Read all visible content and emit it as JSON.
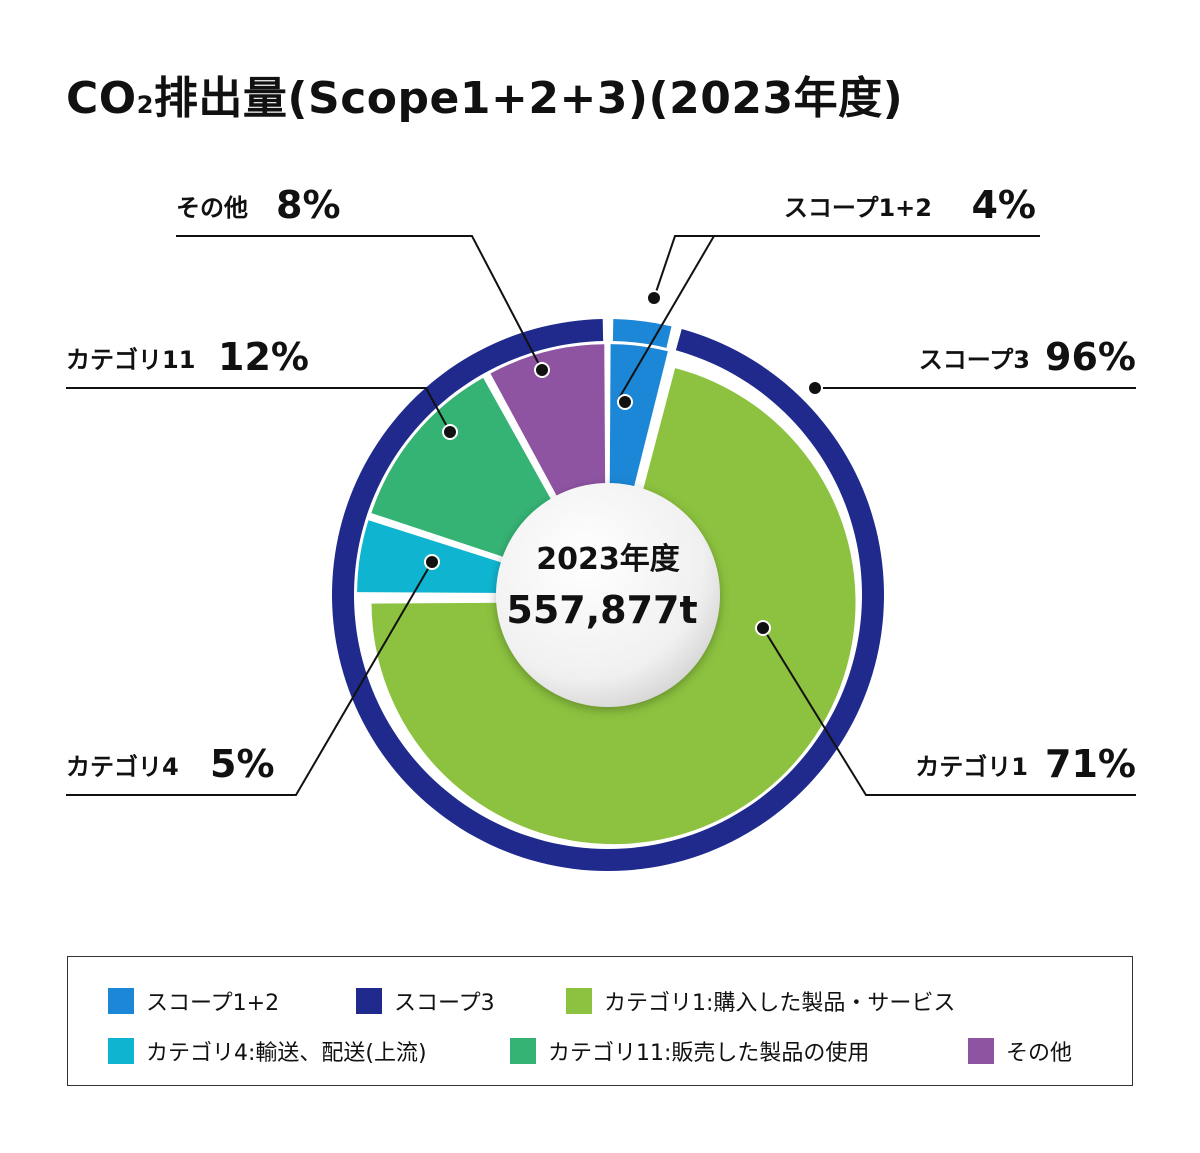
{
  "title": {
    "prefix": "CO",
    "subscript": "2",
    "suffix": "排出量(Scope1+2+3)(2023年度)"
  },
  "center": {
    "year": "2023年度",
    "total": "557,877t"
  },
  "colors": {
    "scope12": "#1c87d6",
    "scope3": "#1f2a8c",
    "cat1": "#8cc23f",
    "cat4": "#0fb5d0",
    "cat11": "#35b374",
    "other": "#8e54a2"
  },
  "chart_data": {
    "type": "pie",
    "outer_ring": [
      {
        "name": "スコープ1+2",
        "value": 4
      },
      {
        "name": "スコープ3",
        "value": 96
      }
    ],
    "inner_pie": [
      {
        "name": "スコープ1+2",
        "value": 4
      },
      {
        "name": "カテゴリ1",
        "value": 71
      },
      {
        "name": "カテゴリ4",
        "value": 5
      },
      {
        "name": "カテゴリ11",
        "value": 12
      },
      {
        "name": "その他",
        "value": 8
      }
    ],
    "callouts": [
      {
        "key": "scope12",
        "label": "スコープ1+2",
        "pct": "4%"
      },
      {
        "key": "scope3",
        "label": "スコープ3",
        "pct": "96%"
      },
      {
        "key": "cat1",
        "label": "カテゴリ1",
        "pct": "71%"
      },
      {
        "key": "cat4",
        "label": "カテゴリ4",
        "pct": "5%"
      },
      {
        "key": "cat11",
        "label": "カテゴリ11",
        "pct": "12%"
      },
      {
        "key": "other",
        "label": "その他",
        "pct": "8%"
      }
    ],
    "legend": [
      {
        "key": "scope12",
        "label": "スコープ1+2"
      },
      {
        "key": "scope3",
        "label": "スコープ3"
      },
      {
        "key": "cat1",
        "label": "カテゴリ1:購入した製品・サービス"
      },
      {
        "key": "cat4",
        "label": "カテゴリ4:輸送、配送(上流)"
      },
      {
        "key": "cat11",
        "label": "カテゴリ11:販売した製品の使用"
      },
      {
        "key": "other",
        "label": "その他"
      }
    ]
  }
}
